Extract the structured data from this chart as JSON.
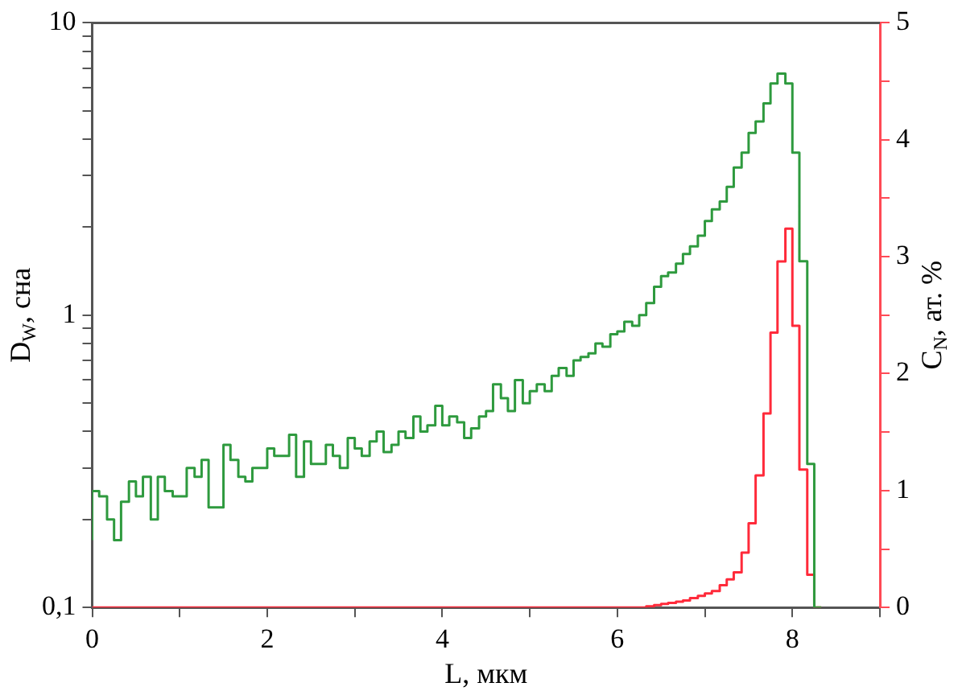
{
  "chart_data": {
    "type": "step",
    "xlabel": "L, мкм",
    "ylabel": "D$_{W}$, сна",
    "y2label": "C$_{N}$, ат. %",
    "x": [
      0,
      0.08,
      0.17,
      0.25,
      0.33,
      0.42,
      0.5,
      0.58,
      0.67,
      0.75,
      0.83,
      0.92,
      1,
      1.08,
      1.17,
      1.25,
      1.33,
      1.42,
      1.5,
      1.58,
      1.67,
      1.75,
      1.83,
      1.92,
      2,
      2.08,
      2.17,
      2.25,
      2.33,
      2.42,
      2.5,
      2.58,
      2.67,
      2.75,
      2.83,
      2.92,
      3,
      3.08,
      3.17,
      3.25,
      3.33,
      3.42,
      3.5,
      3.58,
      3.67,
      3.75,
      3.83,
      3.92,
      4,
      4.08,
      4.17,
      4.25,
      4.33,
      4.42,
      4.5,
      4.58,
      4.67,
      4.75,
      4.83,
      4.92,
      5,
      5.08,
      5.17,
      5.25,
      5.33,
      5.42,
      5.5,
      5.58,
      5.67,
      5.75,
      5.83,
      5.92,
      6,
      6.08,
      6.17,
      6.25,
      6.33,
      6.42,
      6.5,
      6.58,
      6.67,
      6.75,
      6.83,
      6.92,
      7,
      7.08,
      7.17,
      7.25,
      7.33,
      7.42,
      7.5,
      7.58,
      7.67,
      7.75,
      7.83,
      7.92,
      8,
      8.08,
      8.17,
      8.25,
      8.33
    ],
    "series": [
      {
        "color": "#2e9a3e",
        "values": [
          0.17,
          0.25,
          0.24,
          0.2,
          0.17,
          0.23,
          0.27,
          0.24,
          0.28,
          0.2,
          0.28,
          0.25,
          0.24,
          0.24,
          0.3,
          0.28,
          0.32,
          0.22,
          0.22,
          0.36,
          0.32,
          0.28,
          0.27,
          0.3,
          0.3,
          0.35,
          0.33,
          0.33,
          0.39,
          0.28,
          0.37,
          0.31,
          0.31,
          0.36,
          0.33,
          0.3,
          0.38,
          0.35,
          0.33,
          0.37,
          0.4,
          0.34,
          0.36,
          0.4,
          0.38,
          0.45,
          0.4,
          0.42,
          0.49,
          0.42,
          0.45,
          0.43,
          0.38,
          0.41,
          0.45,
          0.47,
          0.58,
          0.52,
          0.47,
          0.6,
          0.5,
          0.55,
          0.58,
          0.55,
          0.62,
          0.66,
          0.62,
          0.7,
          0.72,
          0.74,
          0.8,
          0.78,
          0.86,
          0.88,
          0.95,
          0.92,
          1.0,
          1.1,
          1.25,
          1.36,
          1.4,
          1.5,
          1.62,
          1.72,
          1.87,
          2.1,
          2.3,
          2.45,
          2.75,
          3.2,
          3.6,
          4.2,
          4.6,
          5.3,
          6.2,
          6.7,
          6.2,
          3.6,
          1.53,
          0.31,
          0.1
        ]
      },
      {
        "color": "#ff2a3a",
        "axis": "y2",
        "values": [
          0,
          0,
          0,
          0,
          0,
          0,
          0,
          0,
          0,
          0,
          0,
          0,
          0,
          0,
          0,
          0,
          0,
          0,
          0,
          0,
          0,
          0,
          0,
          0,
          0,
          0,
          0,
          0,
          0,
          0,
          0,
          0,
          0,
          0,
          0,
          0,
          0,
          0,
          0,
          0,
          0,
          0,
          0,
          0,
          0,
          0,
          0,
          0,
          0,
          0,
          0,
          0,
          0,
          0,
          0,
          0,
          0,
          0,
          0,
          0,
          0,
          0,
          0,
          0,
          0,
          0,
          0,
          0,
          0,
          0,
          0,
          0,
          0,
          0,
          0,
          0,
          0,
          0.01,
          0.02,
          0.03,
          0.04,
          0.05,
          0.06,
          0.08,
          0.1,
          0.12,
          0.14,
          0.19,
          0.24,
          0.3,
          0.47,
          0.72,
          1.13,
          1.66,
          2.35,
          2.96,
          3.24,
          2.41,
          1.18,
          0.28,
          0
        ]
      }
    ],
    "log": "y",
    "grid": false,
    "legend": false,
    "xlim": [
      0,
      9
    ],
    "xticks": [
      0,
      {
        "value": 1,
        "label": null
      },
      2,
      {
        "value": 3,
        "label": null
      },
      4,
      {
        "value": 5,
        "label": null
      },
      6,
      {
        "value": 7,
        "label": null
      },
      8,
      {
        "value": 9,
        "label": null
      }
    ],
    "ylim": [
      0.1,
      10
    ],
    "yticks": [
      {
        "value": 0.1,
        "label": "0,1"
      },
      {
        "value": 0.2,
        "label": null
      },
      {
        "value": 0.3,
        "label": null
      },
      {
        "value": 0.4,
        "label": null
      },
      {
        "value": 0.5,
        "label": null
      },
      {
        "value": 0.6,
        "label": null
      },
      {
        "value": 0.7,
        "label": null
      },
      {
        "value": 0.8,
        "label": null
      },
      {
        "value": 0.9,
        "label": null
      },
      1,
      {
        "value": 2,
        "label": null
      },
      {
        "value": 3,
        "label": null
      },
      {
        "value": 4,
        "label": null
      },
      {
        "value": 5,
        "label": null
      },
      {
        "value": 6,
        "label": null
      },
      {
        "value": 7,
        "label": null
      },
      {
        "value": 8,
        "label": null
      },
      {
        "value": 9,
        "label": null
      },
      10
    ],
    "y2lim": [
      0,
      5
    ],
    "y2ticks": [
      0,
      {
        "value": 0.5,
        "label": null
      },
      1,
      {
        "value": 1.5,
        "label": null
      },
      2,
      {
        "value": 2.5,
        "label": null
      },
      3,
      {
        "value": 3.5,
        "label": null
      },
      4,
      {
        "value": 4.5,
        "label": null
      },
      5
    ]
  }
}
